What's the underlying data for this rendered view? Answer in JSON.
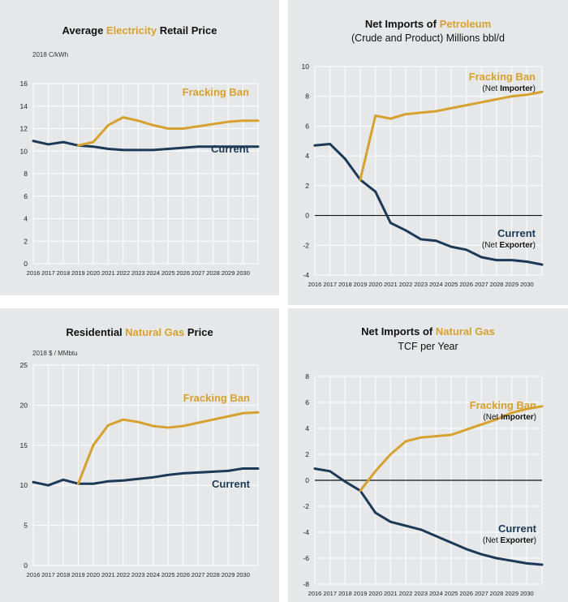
{
  "colors": {
    "ban": "#d6a12f",
    "current": "#1c3a57",
    "grid": "#ffffff",
    "panel": "#e6e7e8"
  },
  "chart_data": [
    {
      "type": "line",
      "title_pre": "Average ",
      "title_hl": "Electricity",
      "title_post": " Retail Price",
      "subtitle": "",
      "ylabel": "2018 C/kWh",
      "ylim": [
        0,
        16
      ],
      "yticks": [
        0,
        2,
        4,
        6,
        8,
        10,
        12,
        14,
        16
      ],
      "xticks": [
        "2016",
        "2017",
        "2018",
        "2019",
        "2020",
        "2021",
        "2022",
        "2023",
        "2024",
        "2025",
        "2026",
        "2027",
        "2028",
        "2029",
        "2030"
      ],
      "series": [
        {
          "name": "Current",
          "note": "",
          "color": "current",
          "x": [
            2016,
            2017,
            2018,
            2019,
            2020,
            2021,
            2022,
            2023,
            2024,
            2025,
            2026,
            2027,
            2028,
            2029,
            2030,
            2031
          ],
          "values": [
            10.9,
            10.6,
            10.8,
            10.5,
            10.4,
            10.2,
            10.1,
            10.1,
            10.1,
            10.2,
            10.3,
            10.4,
            10.4,
            10.4,
            10.4,
            10.4
          ]
        },
        {
          "name": "Fracking Ban",
          "note": "",
          "color": "ban",
          "x": [
            2019,
            2020,
            2021,
            2022,
            2023,
            2024,
            2025,
            2026,
            2027,
            2028,
            2029,
            2030,
            2031
          ],
          "values": [
            10.5,
            10.8,
            12.3,
            13.0,
            12.7,
            12.3,
            12.0,
            12.0,
            12.2,
            12.4,
            12.6,
            12.7,
            12.7
          ]
        }
      ]
    },
    {
      "type": "line",
      "title_pre": "Net Imports of ",
      "title_hl": "Petroleum",
      "title_post": "",
      "subtitle": "(Crude and Product) Millions bbl/d",
      "ylabel": "",
      "ylim": [
        -4,
        10
      ],
      "yticks": [
        -4,
        -2,
        0,
        2,
        4,
        6,
        8,
        10
      ],
      "xticks": [
        "2016",
        "2017",
        "2018",
        "2019",
        "2020",
        "2021",
        "2022",
        "2023",
        "2024",
        "2025",
        "2026",
        "2027",
        "2028",
        "2029",
        "2030"
      ],
      "series": [
        {
          "name": "Current",
          "note_pre": "(Net ",
          "note_b": "Exporter",
          "note_post": ")",
          "color": "current",
          "x": [
            2016,
            2017,
            2018,
            2019,
            2020,
            2021,
            2022,
            2023,
            2024,
            2025,
            2026,
            2027,
            2028,
            2029,
            2030,
            2031
          ],
          "values": [
            4.7,
            4.8,
            3.8,
            2.4,
            1.6,
            -0.5,
            -1.0,
            -1.6,
            -1.7,
            -2.1,
            -2.3,
            -2.8,
            -3.0,
            -3.0,
            -3.1,
            -3.3
          ]
        },
        {
          "name": "Fracking Ban",
          "note_pre": "(Net ",
          "note_b": "Importer",
          "note_post": ")",
          "color": "ban",
          "x": [
            2019,
            2020,
            2021,
            2022,
            2023,
            2024,
            2025,
            2026,
            2027,
            2028,
            2029,
            2030,
            2031
          ],
          "values": [
            2.4,
            6.7,
            6.5,
            6.8,
            6.9,
            7.0,
            7.2,
            7.4,
            7.6,
            7.8,
            8.0,
            8.1,
            8.3
          ]
        }
      ]
    },
    {
      "type": "line",
      "title_pre": "Residential ",
      "title_hl": "Natural Gas",
      "title_post": " Price",
      "subtitle": "",
      "ylabel": "2018 $ / MMbtu",
      "ylim": [
        0,
        25
      ],
      "yticks": [
        0,
        5,
        10,
        15,
        20,
        25
      ],
      "xticks": [
        "2016",
        "2017",
        "2018",
        "2019",
        "2020",
        "2021",
        "2022",
        "2023",
        "2024",
        "2025",
        "2026",
        "2027",
        "2028",
        "2029",
        "2030"
      ],
      "series": [
        {
          "name": "Current",
          "note": "",
          "color": "current",
          "x": [
            2016,
            2017,
            2018,
            2019,
            2020,
            2021,
            2022,
            2023,
            2024,
            2025,
            2026,
            2027,
            2028,
            2029,
            2030,
            2031
          ],
          "values": [
            10.4,
            10.0,
            10.7,
            10.2,
            10.2,
            10.5,
            10.6,
            10.8,
            11.0,
            11.3,
            11.5,
            11.6,
            11.7,
            11.8,
            12.1,
            12.1
          ]
        },
        {
          "name": "Fracking Ban",
          "note": "",
          "color": "ban",
          "x": [
            2019,
            2020,
            2021,
            2022,
            2023,
            2024,
            2025,
            2026,
            2027,
            2028,
            2029,
            2030,
            2031
          ],
          "values": [
            10.2,
            15.0,
            17.5,
            18.2,
            17.9,
            17.4,
            17.2,
            17.4,
            17.8,
            18.2,
            18.6,
            19.0,
            19.1
          ]
        }
      ]
    },
    {
      "type": "line",
      "title_pre": "Net Imports of ",
      "title_hl": "Natural Gas",
      "title_post": "",
      "subtitle": "TCF per Year",
      "ylabel": "",
      "ylim": [
        -8,
        8
      ],
      "yticks": [
        -8,
        -6,
        -4,
        -2,
        0,
        2,
        4,
        6,
        8
      ],
      "xticks": [
        "2016",
        "2017",
        "2018",
        "2019",
        "2020",
        "2021",
        "2022",
        "2023",
        "2024",
        "2025",
        "2026",
        "2027",
        "2028",
        "2029",
        "2030"
      ],
      "series": [
        {
          "name": "Current",
          "note_pre": "(Net ",
          "note_b": "Exporter",
          "note_post": ")",
          "color": "current",
          "x": [
            2016,
            2017,
            2018,
            2019,
            2020,
            2021,
            2022,
            2023,
            2024,
            2025,
            2026,
            2027,
            2028,
            2029,
            2030,
            2031
          ],
          "values": [
            0.9,
            0.7,
            -0.1,
            -0.8,
            -2.5,
            -3.2,
            -3.5,
            -3.8,
            -4.3,
            -4.8,
            -5.3,
            -5.7,
            -6.0,
            -6.2,
            -6.4,
            -6.5
          ]
        },
        {
          "name": "Fracking Ban",
          "note_pre": "(Net ",
          "note_b": "Importer",
          "note_post": ")",
          "color": "ban",
          "x": [
            2019,
            2020,
            2021,
            2022,
            2023,
            2024,
            2025,
            2026,
            2027,
            2028,
            2029,
            2030,
            2031
          ],
          "values": [
            -0.8,
            0.7,
            2.0,
            3.0,
            3.3,
            3.4,
            3.5,
            3.9,
            4.3,
            4.7,
            5.2,
            5.5,
            5.7
          ]
        }
      ]
    }
  ]
}
